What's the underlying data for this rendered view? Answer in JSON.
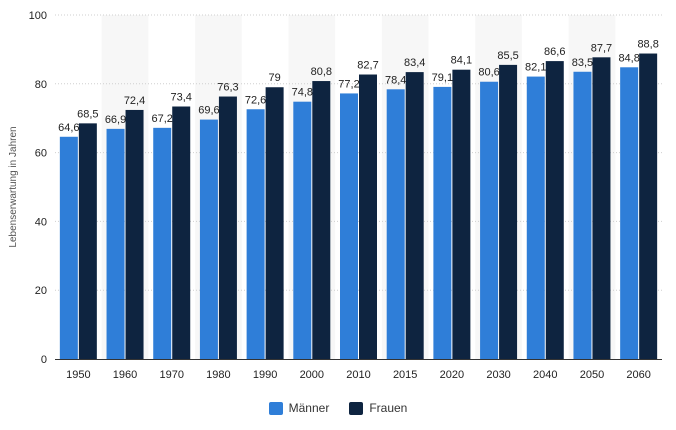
{
  "chart_data": {
    "type": "bar",
    "ylabel": "Lebenserwartung in Jahren",
    "ylim": [
      0,
      100
    ],
    "yticks": [
      0,
      20,
      40,
      60,
      80,
      100
    ],
    "grid": true,
    "legend_position": "bottom-center",
    "categories": [
      "1950",
      "1960",
      "1970",
      "1980",
      "1990",
      "2000",
      "2010",
      "2015",
      "2020",
      "2030",
      "2040",
      "2050",
      "2060"
    ],
    "series": [
      {
        "name": "Männer",
        "color": "#2f7ed8",
        "values": [
          64.6,
          66.9,
          67.2,
          69.6,
          72.6,
          74.8,
          77.2,
          78.4,
          79.1,
          80.6,
          82.1,
          83.5,
          84.8
        ],
        "labels": [
          "64,6",
          "66,9",
          "67,2",
          "69,6",
          "72,6",
          "74,8",
          "77,2",
          "78,4",
          "79,1",
          "80,6",
          "82,1",
          "83,5",
          "84,8"
        ]
      },
      {
        "name": "Frauen",
        "color": "#0e2440",
        "values": [
          68.5,
          72.4,
          73.4,
          76.3,
          79,
          80.8,
          82.7,
          83.4,
          84.1,
          85.5,
          86.6,
          87.7,
          88.8
        ],
        "labels": [
          "68,5",
          "72,4",
          "73,4",
          "76,3",
          "79",
          "80,8",
          "82,7",
          "83,4",
          "84,1",
          "85,5",
          "86,6",
          "87,7",
          "88,8"
        ]
      }
    ]
  }
}
